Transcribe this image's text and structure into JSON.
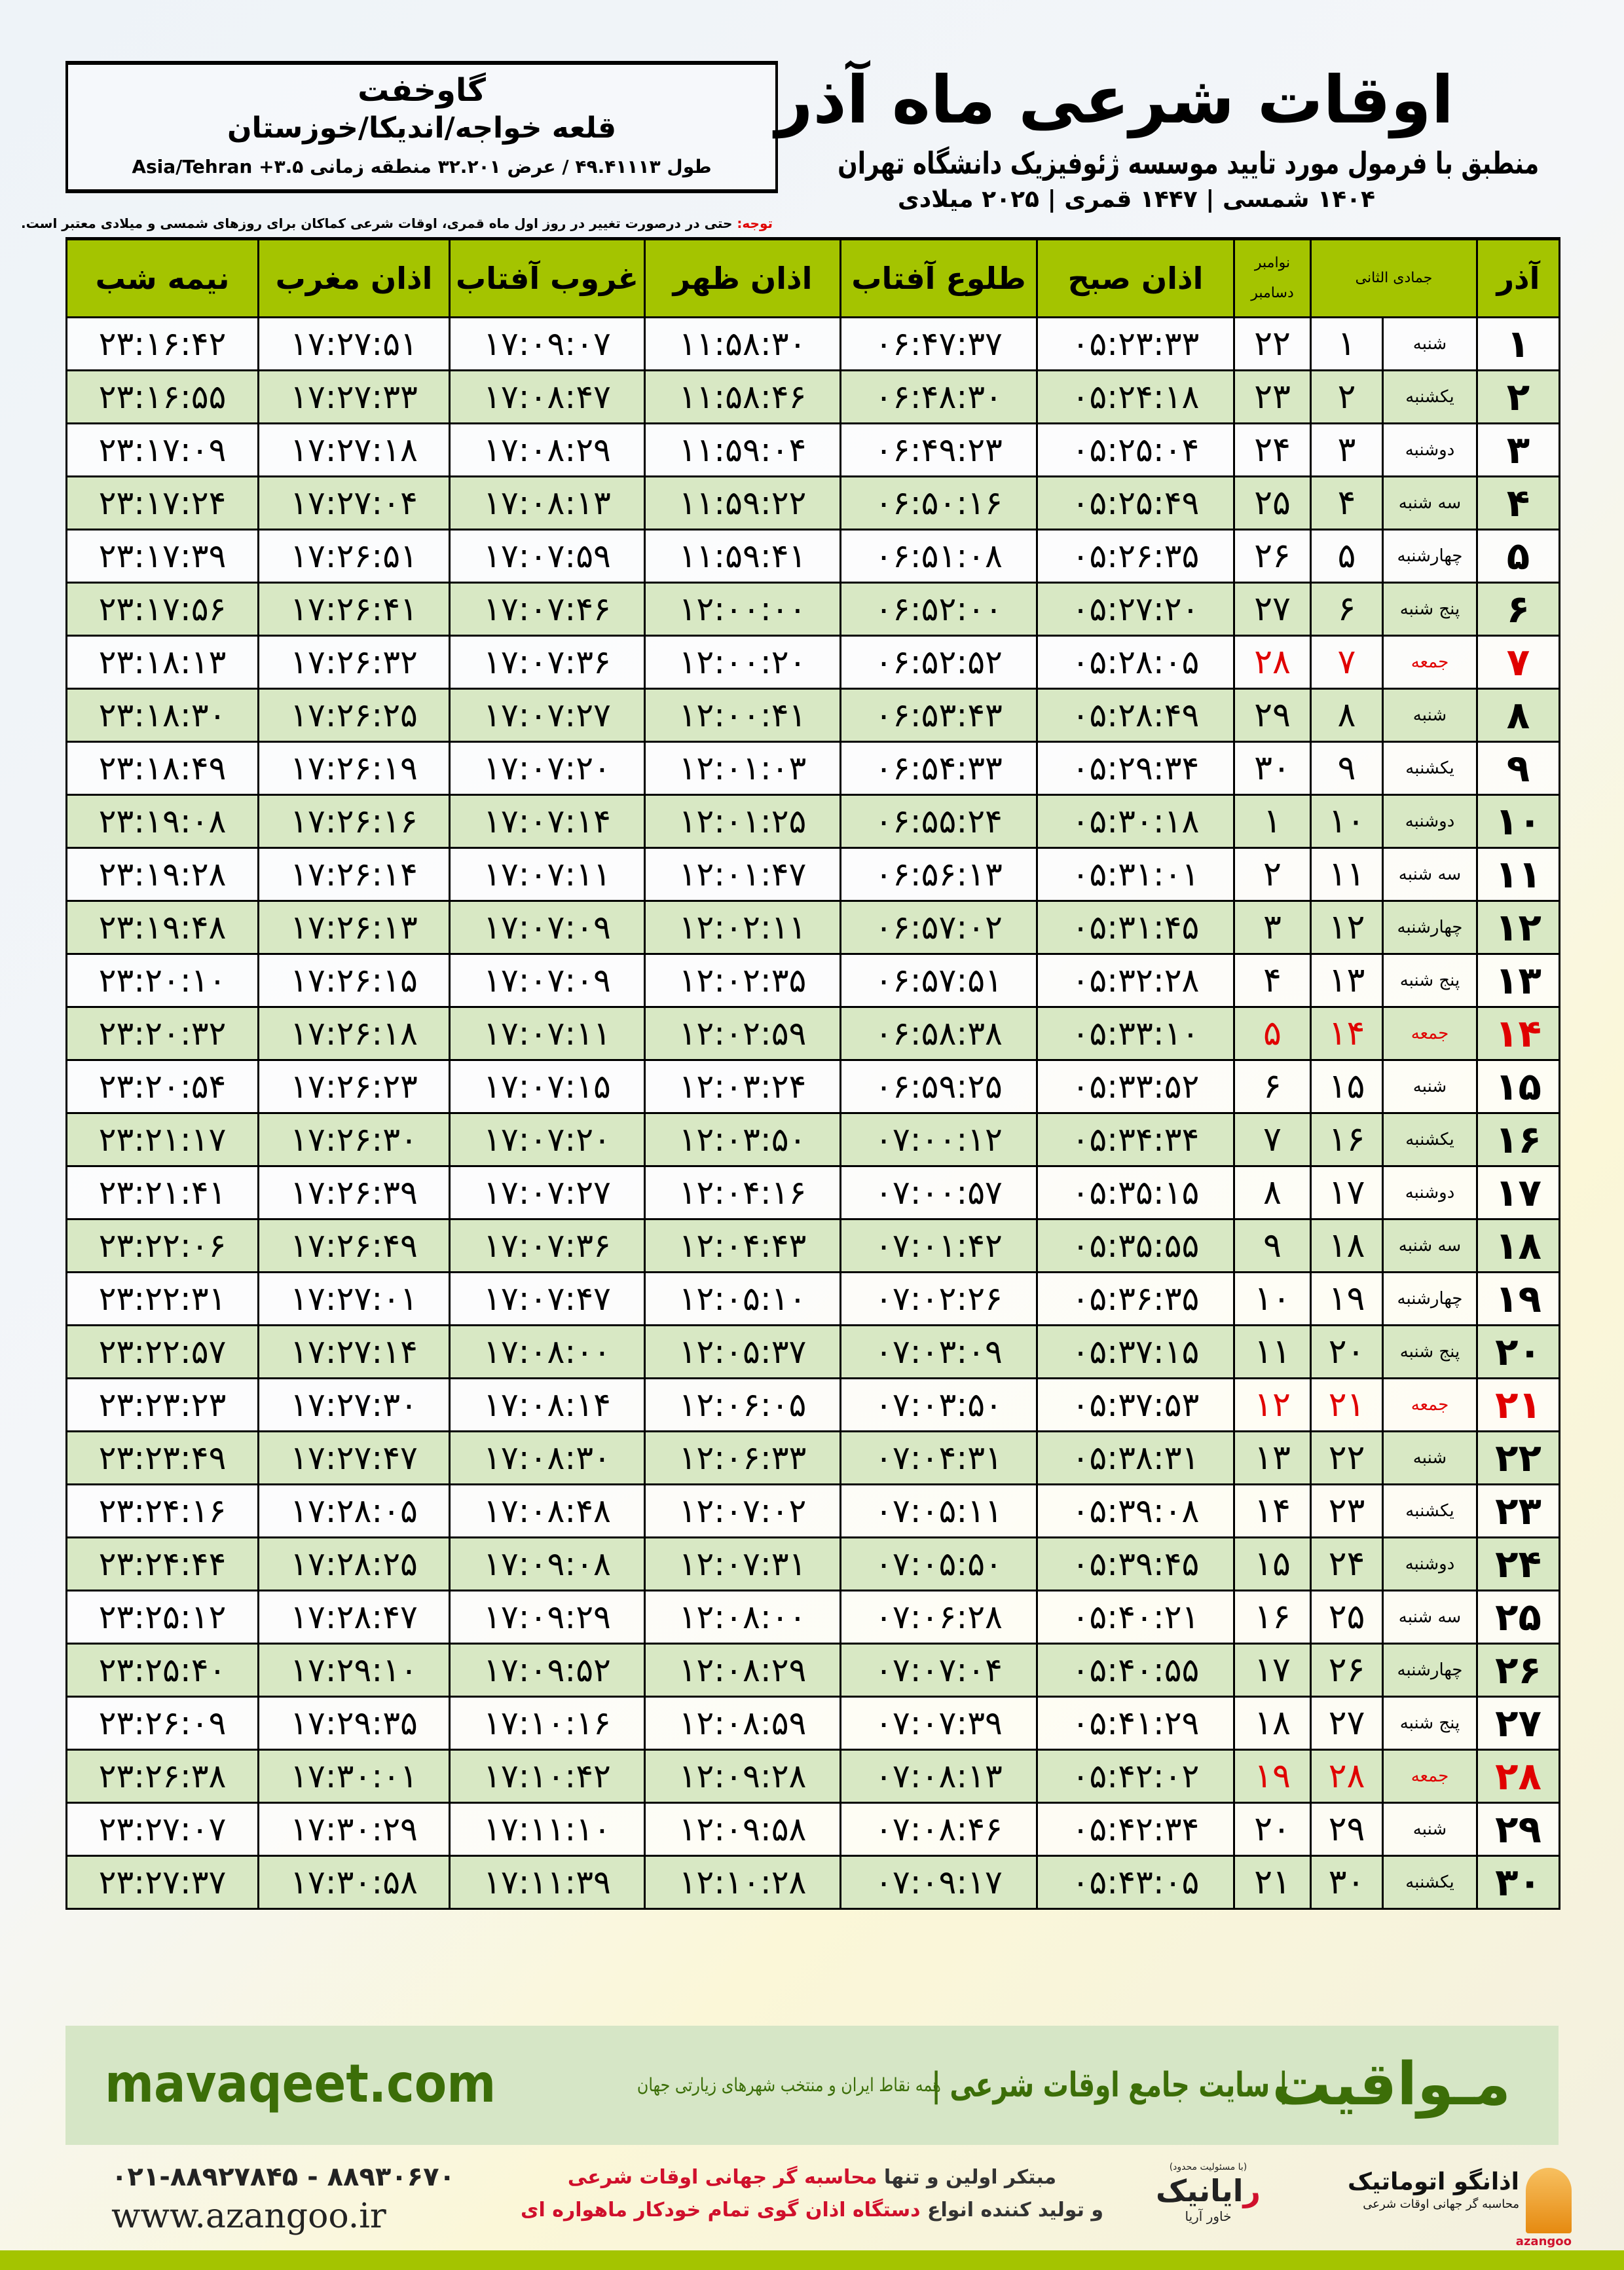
{
  "location": {
    "city": "گاوخفت",
    "path": "قلعه خواجه/اندیکا/خوزستان",
    "coords": "طول ۴۹.۴۱۱۱۳ / عرض ۳۲.۲۰۱ منطقه زمانی ۳.۵+ Asia/Tehran"
  },
  "header": {
    "title": "اوقات شرعی ماه آذر",
    "subtitle": "منطبق با فرمول مورد تایید موسسه ژئوفیزیک دانشگاه تهران",
    "dates": "۱۴۰۴ شمسی | ۱۴۴۷ قمری | ۲۰۲۵ میلادی"
  },
  "note": {
    "label": "توجه:",
    "text": " حتی در درصورت تغییر در روز اول ماه قمری، اوقات شرعی کماکان برای روزهای شمسی و میلادی معتبر است."
  },
  "table": {
    "headers": {
      "month": "آذر",
      "qamari": "جمادی الثانی",
      "gregorian_top": "نوامبر",
      "gregorian_bottom": "دسامبر",
      "fajr": "اذان صبح",
      "sunrise": "طلوع آفتاب",
      "dhuhr": "اذان ظهر",
      "sunset": "غروب آفتاب",
      "maghrib": "اذان مغرب",
      "midnight": "نیمه شب"
    },
    "friday_color": "#e00000",
    "header_color": "#a4c400",
    "rows": [
      [
        "۱",
        "شنبه",
        "۱",
        "۲۲",
        "۰۵:۲۳:۳۳",
        "۰۶:۴۷:۳۷",
        "۱۱:۵۸:۳۰",
        "۱۷:۰۹:۰۷",
        "۱۷:۲۷:۵۱",
        "۲۳:۱۶:۴۲"
      ],
      [
        "۲",
        "یکشنبه",
        "۲",
        "۲۳",
        "۰۵:۲۴:۱۸",
        "۰۶:۴۸:۳۰",
        "۱۱:۵۸:۴۶",
        "۱۷:۰۸:۴۷",
        "۱۷:۲۷:۳۳",
        "۲۳:۱۶:۵۵"
      ],
      [
        "۳",
        "دوشنبه",
        "۳",
        "۲۴",
        "۰۵:۲۵:۰۴",
        "۰۶:۴۹:۲۳",
        "۱۱:۵۹:۰۴",
        "۱۷:۰۸:۲۹",
        "۱۷:۲۷:۱۸",
        "۲۳:۱۷:۰۹"
      ],
      [
        "۴",
        "سه شنبه",
        "۴",
        "۲۵",
        "۰۵:۲۵:۴۹",
        "۰۶:۵۰:۱۶",
        "۱۱:۵۹:۲۲",
        "۱۷:۰۸:۱۳",
        "۱۷:۲۷:۰۴",
        "۲۳:۱۷:۲۴"
      ],
      [
        "۵",
        "چهارشنبه",
        "۵",
        "۲۶",
        "۰۵:۲۶:۳۵",
        "۰۶:۵۱:۰۸",
        "۱۱:۵۹:۴۱",
        "۱۷:۰۷:۵۹",
        "۱۷:۲۶:۵۱",
        "۲۳:۱۷:۳۹"
      ],
      [
        "۶",
        "پنج شنبه",
        "۶",
        "۲۷",
        "۰۵:۲۷:۲۰",
        "۰۶:۵۲:۰۰",
        "۱۲:۰۰:۰۰",
        "۱۷:۰۷:۴۶",
        "۱۷:۲۶:۴۱",
        "۲۳:۱۷:۵۶"
      ],
      [
        "۷",
        "جمعه",
        "۷",
        "۲۸",
        "۰۵:۲۸:۰۵",
        "۰۶:۵۲:۵۲",
        "۱۲:۰۰:۲۰",
        "۱۷:۰۷:۳۶",
        "۱۷:۲۶:۳۲",
        "۲۳:۱۸:۱۳"
      ],
      [
        "۸",
        "شنبه",
        "۸",
        "۲۹",
        "۰۵:۲۸:۴۹",
        "۰۶:۵۳:۴۳",
        "۱۲:۰۰:۴۱",
        "۱۷:۰۷:۲۷",
        "۱۷:۲۶:۲۵",
        "۲۳:۱۸:۳۰"
      ],
      [
        "۹",
        "یکشنبه",
        "۹",
        "۳۰",
        "۰۵:۲۹:۳۴",
        "۰۶:۵۴:۳۳",
        "۱۲:۰۱:۰۳",
        "۱۷:۰۷:۲۰",
        "۱۷:۲۶:۱۹",
        "۲۳:۱۸:۴۹"
      ],
      [
        "۱۰",
        "دوشنبه",
        "۱۰",
        "۱",
        "۰۵:۳۰:۱۸",
        "۰۶:۵۵:۲۴",
        "۱۲:۰۱:۲۵",
        "۱۷:۰۷:۱۴",
        "۱۷:۲۶:۱۶",
        "۲۳:۱۹:۰۸"
      ],
      [
        "۱۱",
        "سه شنبه",
        "۱۱",
        "۲",
        "۰۵:۳۱:۰۱",
        "۰۶:۵۶:۱۳",
        "۱۲:۰۱:۴۷",
        "۱۷:۰۷:۱۱",
        "۱۷:۲۶:۱۴",
        "۲۳:۱۹:۲۸"
      ],
      [
        "۱۲",
        "چهارشنبه",
        "۱۲",
        "۳",
        "۰۵:۳۱:۴۵",
        "۰۶:۵۷:۰۲",
        "۱۲:۰۲:۱۱",
        "۱۷:۰۷:۰۹",
        "۱۷:۲۶:۱۳",
        "۲۳:۱۹:۴۸"
      ],
      [
        "۱۳",
        "پنج شنبه",
        "۱۳",
        "۴",
        "۰۵:۳۲:۲۸",
        "۰۶:۵۷:۵۱",
        "۱۲:۰۲:۳۵",
        "۱۷:۰۷:۰۹",
        "۱۷:۲۶:۱۵",
        "۲۳:۲۰:۱۰"
      ],
      [
        "۱۴",
        "جمعه",
        "۱۴",
        "۵",
        "۰۵:۳۳:۱۰",
        "۰۶:۵۸:۳۸",
        "۱۲:۰۲:۵۹",
        "۱۷:۰۷:۱۱",
        "۱۷:۲۶:۱۸",
        "۲۳:۲۰:۳۲"
      ],
      [
        "۱۵",
        "شنبه",
        "۱۵",
        "۶",
        "۰۵:۳۳:۵۲",
        "۰۶:۵۹:۲۵",
        "۱۲:۰۳:۲۴",
        "۱۷:۰۷:۱۵",
        "۱۷:۲۶:۲۳",
        "۲۳:۲۰:۵۴"
      ],
      [
        "۱۶",
        "یکشنبه",
        "۱۶",
        "۷",
        "۰۵:۳۴:۳۴",
        "۰۷:۰۰:۱۲",
        "۱۲:۰۳:۵۰",
        "۱۷:۰۷:۲۰",
        "۱۷:۲۶:۳۰",
        "۲۳:۲۱:۱۷"
      ],
      [
        "۱۷",
        "دوشنبه",
        "۱۷",
        "۸",
        "۰۵:۳۵:۱۵",
        "۰۷:۰۰:۵۷",
        "۱۲:۰۴:۱۶",
        "۱۷:۰۷:۲۷",
        "۱۷:۲۶:۳۹",
        "۲۳:۲۱:۴۱"
      ],
      [
        "۱۸",
        "سه شنبه",
        "۱۸",
        "۹",
        "۰۵:۳۵:۵۵",
        "۰۷:۰۱:۴۲",
        "۱۲:۰۴:۴۳",
        "۱۷:۰۷:۳۶",
        "۱۷:۲۶:۴۹",
        "۲۳:۲۲:۰۶"
      ],
      [
        "۱۹",
        "چهارشنبه",
        "۱۹",
        "۱۰",
        "۰۵:۳۶:۳۵",
        "۰۷:۰۲:۲۶",
        "۱۲:۰۵:۱۰",
        "۱۷:۰۷:۴۷",
        "۱۷:۲۷:۰۱",
        "۲۳:۲۲:۳۱"
      ],
      [
        "۲۰",
        "پنج شنبه",
        "۲۰",
        "۱۱",
        "۰۵:۳۷:۱۵",
        "۰۷:۰۳:۰۹",
        "۱۲:۰۵:۳۷",
        "۱۷:۰۸:۰۰",
        "۱۷:۲۷:۱۴",
        "۲۳:۲۲:۵۷"
      ],
      [
        "۲۱",
        "جمعه",
        "۲۱",
        "۱۲",
        "۰۵:۳۷:۵۳",
        "۰۷:۰۳:۵۰",
        "۱۲:۰۶:۰۵",
        "۱۷:۰۸:۱۴",
        "۱۷:۲۷:۳۰",
        "۲۳:۲۳:۲۳"
      ],
      [
        "۲۲",
        "شنبه",
        "۲۲",
        "۱۳",
        "۰۵:۳۸:۳۱",
        "۰۷:۰۴:۳۱",
        "۱۲:۰۶:۳۳",
        "۱۷:۰۸:۳۰",
        "۱۷:۲۷:۴۷",
        "۲۳:۲۳:۴۹"
      ],
      [
        "۲۳",
        "یکشنبه",
        "۲۳",
        "۱۴",
        "۰۵:۳۹:۰۸",
        "۰۷:۰۵:۱۱",
        "۱۲:۰۷:۰۲",
        "۱۷:۰۸:۴۸",
        "۱۷:۲۸:۰۵",
        "۲۳:۲۴:۱۶"
      ],
      [
        "۲۴",
        "دوشنبه",
        "۲۴",
        "۱۵",
        "۰۵:۳۹:۴۵",
        "۰۷:۰۵:۵۰",
        "۱۲:۰۷:۳۱",
        "۱۷:۰۹:۰۸",
        "۱۷:۲۸:۲۵",
        "۲۳:۲۴:۴۴"
      ],
      [
        "۲۵",
        "سه شنبه",
        "۲۵",
        "۱۶",
        "۰۵:۴۰:۲۱",
        "۰۷:۰۶:۲۸",
        "۱۲:۰۸:۰۰",
        "۱۷:۰۹:۲۹",
        "۱۷:۲۸:۴۷",
        "۲۳:۲۵:۱۲"
      ],
      [
        "۲۶",
        "چهارشنبه",
        "۲۶",
        "۱۷",
        "۰۵:۴۰:۵۵",
        "۰۷:۰۷:۰۴",
        "۱۲:۰۸:۲۹",
        "۱۷:۰۹:۵۲",
        "۱۷:۲۹:۱۰",
        "۲۳:۲۵:۴۰"
      ],
      [
        "۲۷",
        "پنج شنبه",
        "۲۷",
        "۱۸",
        "۰۵:۴۱:۲۹",
        "۰۷:۰۷:۳۹",
        "۱۲:۰۸:۵۹",
        "۱۷:۱۰:۱۶",
        "۱۷:۲۹:۳۵",
        "۲۳:۲۶:۰۹"
      ],
      [
        "۲۸",
        "جمعه",
        "۲۸",
        "۱۹",
        "۰۵:۴۲:۰۲",
        "۰۷:۰۸:۱۳",
        "۱۲:۰۹:۲۸",
        "۱۷:۱۰:۴۲",
        "۱۷:۳۰:۰۱",
        "۲۳:۲۶:۳۸"
      ],
      [
        "۲۹",
        "شنبه",
        "۲۹",
        "۲۰",
        "۰۵:۴۲:۳۴",
        "۰۷:۰۸:۴۶",
        "۱۲:۰۹:۵۸",
        "۱۷:۱۱:۱۰",
        "۱۷:۳۰:۲۹",
        "۲۳:۲۷:۰۷"
      ],
      [
        "۳۰",
        "یکشنبه",
        "۳۰",
        "۲۱",
        "۰۵:۴۳:۰۵",
        "۰۷:۰۹:۱۷",
        "۱۲:۱۰:۲۸",
        "۱۷:۱۱:۳۹",
        "۱۷:۳۰:۵۸",
        "۲۳:۲۷:۳۷"
      ]
    ]
  },
  "banner": {
    "logo": "مـواقیت",
    "slogan": "| سایت جامع اوقات شرعی |",
    "sub": "همه نقاط ایران و منتخب شهرهای زیارتی جهان",
    "url": "mavaqeet.com",
    "brand_color": "#3c6e08"
  },
  "footer": {
    "phone": "۰۲۱-۸۸۹۲۷۸۴۵ - ۸۸۹۳۰۶۷۰",
    "site": "www.azangoo.ir",
    "promo_line1_a": "مبتکر اولین و تنها ",
    "promo_line1_b": "محاسبه گر جهانی اوقات شرعی",
    "promo_line2_a": "و تولید کننده انواع ",
    "promo_line2_b": "دستگاه اذان گوی تمام خودکار ماهواره ای",
    "rayanik_small": "(با مسئولیت محدود)",
    "rayanik_r": "ر",
    "rayanik_name": "ایانیک",
    "rayanik_sub": "خاور آریا",
    "azangoo_name": "اذانگو اتوماتیک",
    "azangoo_tag": "محاسبه گر جهانی اوقات شرعی",
    "azangoo_en": "azangoo"
  }
}
